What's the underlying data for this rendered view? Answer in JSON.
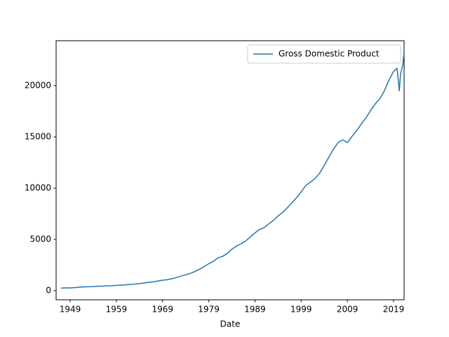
{
  "chart_data": {
    "type": "line",
    "x_label": "Date",
    "x": [
      1947,
      1948,
      1949,
      1950,
      1951,
      1952,
      1953,
      1954,
      1955,
      1956,
      1957,
      1958,
      1959,
      1960,
      1961,
      1962,
      1963,
      1964,
      1965,
      1966,
      1967,
      1968,
      1969,
      1970,
      1971,
      1972,
      1973,
      1974,
      1975,
      1976,
      1977,
      1978,
      1979,
      1980,
      1981,
      1982,
      1983,
      1984,
      1985,
      1986,
      1987,
      1988,
      1989,
      1990,
      1991,
      1992,
      1993,
      1994,
      1995,
      1996,
      1997,
      1998,
      1999,
      2000,
      2001,
      2002,
      2003,
      2004,
      2005,
      2006,
      2007,
      2008,
      2009,
      2010,
      2011,
      2012,
      2013,
      2014,
      2015,
      2016,
      2017,
      2018,
      2019,
      2019.75,
      2020.25,
      2020.5,
      2021,
      2021.25
    ],
    "series": [
      {
        "name": "Gross Domestic Product",
        "color": "#1f77b4",
        "values": [
          250,
          270,
          268,
          300,
          345,
          367,
          387,
          390,
          425,
          449,
          474,
          481,
          521,
          542,
          562,
          604,
          638,
          686,
          744,
          815,
          862,
          942,
          1019,
          1073,
          1165,
          1280,
          1425,
          1545,
          1684,
          1873,
          2082,
          2352,
          2627,
          2857,
          3207,
          3343,
          3634,
          4037,
          4339,
          4580,
          4855,
          5236,
          5642,
          5963,
          6158,
          6520,
          6858,
          7287,
          7640,
          8073,
          8578,
          9063,
          9631,
          10251,
          10582,
          10936,
          11458,
          12214,
          13037,
          13815,
          14452,
          14713,
          14449,
          15049,
          15600,
          16254,
          16843,
          17551,
          18206,
          18695,
          19480,
          20533,
          21381,
          21700,
          19500,
          21100,
          22000,
          23200
        ]
      }
    ],
    "xlim": [
      1945.96,
      2021.28
    ],
    "xticks": [
      1949,
      1959,
      1969,
      1979,
      1989,
      1999,
      2009,
      2019
    ],
    "ylim": [
      -890,
      24380
    ],
    "yticks": [
      0,
      5000,
      10000,
      15000,
      20000
    ],
    "legend": "upper right"
  }
}
